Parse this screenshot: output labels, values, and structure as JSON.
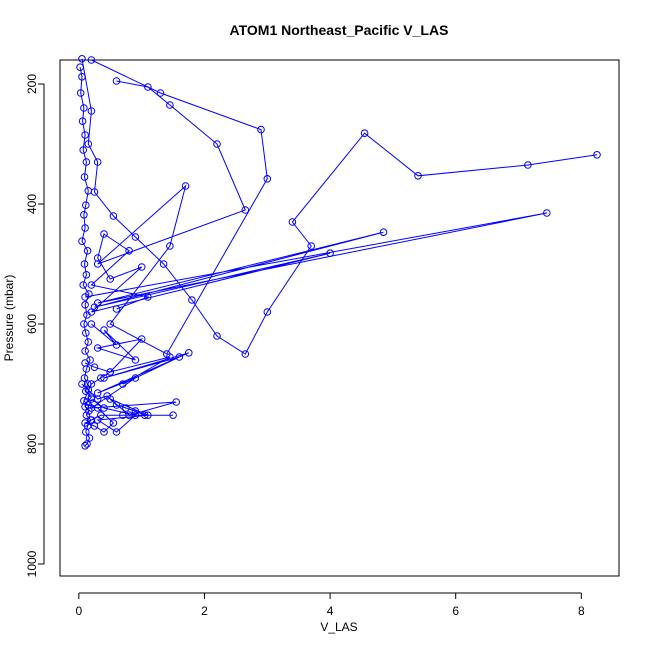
{
  "chart_data": {
    "type": "line",
    "title": "ATOM1 Northeast_Pacific V_LAS",
    "xlabel": "V_LAS",
    "ylabel": "Pressure (mbar)",
    "xlim": [
      -0.3,
      8.6
    ],
    "ylim": [
      1020,
      160
    ],
    "y_reversed": true,
    "x_ticks": [
      0,
      2,
      4,
      6,
      8
    ],
    "y_ticks": [
      200,
      400,
      600,
      800,
      1000
    ],
    "grid": false,
    "legend": "none",
    "color": "#0000ff",
    "marker": "open-circle",
    "series": [
      {
        "x": [
          0.02,
          0.05,
          0.03,
          0.08,
          0.06,
          0.1,
          0.07,
          0.12,
          0.09,
          0.15,
          0.11,
          0.08,
          0.1,
          0.05,
          0.14,
          0.09,
          0.12,
          0.07,
          0.16,
          0.1,
          0.13,
          0.08,
          0.11,
          0.15,
          0.1,
          0.18,
          0.12,
          0.09,
          0.14,
          0.11,
          0.2,
          0.13,
          0.1,
          0.16,
          0.12,
          0.19,
          0.14,
          0.11,
          0.17,
          0.13,
          0.1
        ],
        "y": [
          172,
          188,
          215,
          240,
          262,
          285,
          310,
          330,
          355,
          378,
          402,
          418,
          440,
          462,
          478,
          500,
          518,
          535,
          550,
          568,
          585,
          600,
          615,
          630,
          645,
          660,
          675,
          690,
          700,
          712,
          722,
          730,
          738,
          745,
          752,
          760,
          770,
          780,
          790,
          800,
          803
        ]
      },
      {
        "x": [
          0.05,
          0.2,
          0.15,
          0.3,
          0.25,
          0.55,
          0.9,
          1.35,
          1.8,
          2.2,
          2.65,
          3.0,
          3.7,
          3.4,
          4.55,
          5.4,
          7.15,
          8.25
        ],
        "y": [
          158,
          245,
          300,
          330,
          380,
          420,
          455,
          500,
          560,
          620,
          650,
          580,
          470,
          430,
          282,
          353,
          335,
          318
        ]
      },
      {
        "x": [
          0.6,
          1.1,
          1.45,
          2.2,
          2.65,
          0.3,
          1.7,
          1.45,
          0.5,
          1.4,
          3.0,
          2.9,
          1.3,
          0.2
        ],
        "y": [
          195,
          205,
          235,
          300,
          410,
          500,
          370,
          470,
          600,
          650,
          358,
          276,
          215,
          160
        ]
      },
      {
        "x": [
          0.1,
          7.45,
          0.3,
          4.85,
          0.25,
          4.0,
          0.2,
          1.0,
          0.5,
          0.3,
          0.4,
          0.8,
          0.2,
          1.1,
          0.6
        ],
        "y": [
          555,
          415,
          565,
          447,
          572,
          482,
          580,
          505,
          525,
          490,
          450,
          478,
          535,
          555,
          575
        ]
      },
      {
        "x": [
          0.2,
          0.6,
          0.4,
          0.9,
          0.3,
          1.0,
          0.5,
          1.45,
          0.7,
          1.6,
          0.4,
          1.75,
          0.3,
          0.9,
          0.2,
          1.55,
          0.8,
          0.5,
          1.1,
          0.3,
          0.6,
          0.9,
          0.4,
          0.2
        ],
        "y": [
          600,
          635,
          610,
          660,
          640,
          625,
          680,
          655,
          700,
          655,
          690,
          648,
          715,
          690,
          740,
          730,
          752,
          725,
          752,
          760,
          780,
          752,
          740,
          725
        ]
      },
      {
        "x": [
          0.05,
          0.15,
          0.3,
          0.45,
          0.6,
          0.75,
          0.9,
          1.05,
          1.5,
          0.7,
          0.35,
          0.2,
          0.1,
          0.25,
          0.4,
          0.55,
          0.3,
          0.15,
          0.08,
          0.2,
          0.35,
          0.5,
          0.25,
          0.1
        ],
        "y": [
          700,
          710,
          725,
          720,
          735,
          740,
          745,
          752,
          752,
          752,
          752,
          760,
          765,
          770,
          780,
          765,
          740,
          735,
          728,
          700,
          690,
          680,
          672,
          665
        ]
      }
    ]
  }
}
